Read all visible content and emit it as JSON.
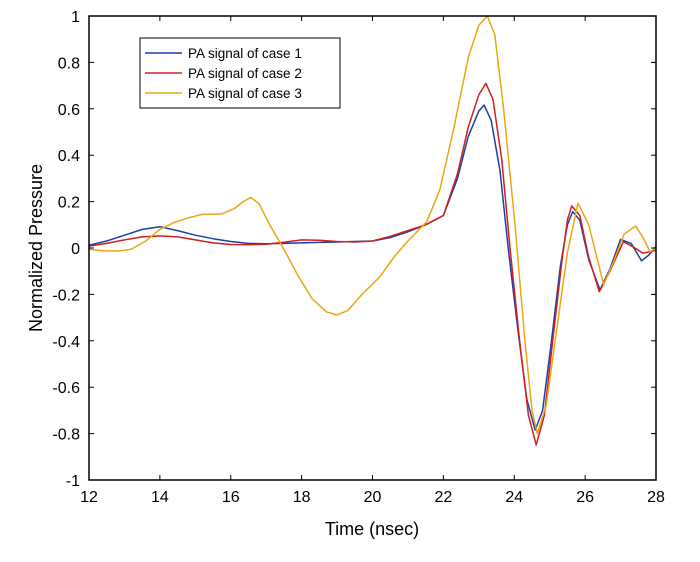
{
  "chart_data": {
    "type": "line",
    "title": "",
    "xlabel": "Time (nsec)",
    "ylabel": "Normalized Pressure",
    "xlim": [
      12,
      28
    ],
    "ylim": [
      -1,
      1
    ],
    "xticks": [
      12,
      14,
      16,
      18,
      20,
      22,
      24,
      26,
      28
    ],
    "yticks": [
      -1,
      -0.8,
      -0.6,
      -0.4,
      -0.2,
      0,
      0.2,
      0.4,
      0.6,
      0.8,
      1
    ],
    "xtick_labels": [
      "12",
      "14",
      "16",
      "18",
      "20",
      "22",
      "24",
      "26",
      "28"
    ],
    "ytick_labels": [
      "-1",
      "-0.8",
      "-0.6",
      "-0.4",
      "-0.2",
      "0",
      "0.2",
      "0.4",
      "0.6",
      "0.8",
      "1"
    ],
    "grid": false,
    "legend_position": "top-left",
    "series": [
      {
        "name": "PA signal of case 1",
        "color": "#1f3fa8",
        "x": [
          12.0,
          12.5,
          13.0,
          13.5,
          14.0,
          14.5,
          15.0,
          15.5,
          16.0,
          16.5,
          17.0,
          17.5,
          18.0,
          18.5,
          19.0,
          19.5,
          20.0,
          20.5,
          21.0,
          21.5,
          22.0,
          22.4,
          22.7,
          23.0,
          23.15,
          23.35,
          23.6,
          23.83,
          24.1,
          24.35,
          24.59,
          24.8,
          25.05,
          25.3,
          25.5,
          25.65,
          25.85,
          26.1,
          26.42,
          26.7,
          27.0,
          27.3,
          27.59,
          27.8,
          28.0
        ],
        "y": [
          0.012,
          0.03,
          0.055,
          0.08,
          0.092,
          0.075,
          0.055,
          0.04,
          0.028,
          0.02,
          0.018,
          0.02,
          0.022,
          0.024,
          0.026,
          0.028,
          0.03,
          0.045,
          0.07,
          0.1,
          0.14,
          0.3,
          0.48,
          0.59,
          0.616,
          0.55,
          0.33,
          0.0,
          -0.35,
          -0.65,
          -0.785,
          -0.7,
          -0.4,
          -0.08,
          0.1,
          0.157,
          0.12,
          -0.05,
          -0.181,
          -0.09,
          0.037,
          0.02,
          -0.055,
          -0.03,
          0.006
        ]
      },
      {
        "name": "PA signal of case 2",
        "color": "#d0201c",
        "x": [
          12.0,
          12.5,
          13.0,
          13.5,
          14.0,
          14.5,
          15.0,
          15.5,
          16.0,
          16.5,
          17.0,
          17.5,
          18.0,
          18.5,
          19.0,
          19.5,
          20.0,
          20.5,
          21.0,
          21.5,
          22.0,
          22.4,
          22.7,
          23.0,
          23.2,
          23.4,
          23.65,
          23.88,
          24.15,
          24.4,
          24.62,
          24.85,
          25.1,
          25.35,
          25.5,
          25.62,
          25.85,
          26.1,
          26.4,
          26.7,
          27.08,
          27.35,
          27.64,
          27.85,
          28.0
        ],
        "y": [
          0.008,
          0.02,
          0.035,
          0.048,
          0.052,
          0.048,
          0.035,
          0.022,
          0.015,
          0.014,
          0.016,
          0.025,
          0.035,
          0.033,
          0.028,
          0.026,
          0.03,
          0.05,
          0.075,
          0.1,
          0.14,
          0.32,
          0.52,
          0.66,
          0.71,
          0.64,
          0.38,
          0.0,
          -0.4,
          -0.72,
          -0.849,
          -0.72,
          -0.38,
          -0.05,
          0.12,
          0.181,
          0.14,
          -0.04,
          -0.188,
          -0.1,
          0.027,
          0.005,
          -0.023,
          -0.015,
          -0.01
        ]
      },
      {
        "name": "PA signal of case 3",
        "color": "#eaa713",
        "x": [
          12.0,
          12.4,
          12.85,
          13.2,
          13.6,
          14.0,
          14.4,
          14.8,
          15.2,
          15.75,
          16.1,
          16.35,
          16.57,
          16.8,
          17.1,
          17.48,
          17.9,
          18.3,
          18.7,
          18.99,
          19.3,
          19.7,
          20.21,
          20.6,
          21.0,
          21.53,
          21.9,
          22.3,
          22.7,
          23.0,
          23.24,
          23.45,
          23.7,
          24.02,
          24.3,
          24.5,
          24.65,
          24.9,
          25.2,
          25.5,
          25.8,
          26.1,
          26.52,
          26.8,
          27.1,
          27.43,
          27.65,
          27.83,
          28.0
        ],
        "y": [
          -0.005,
          -0.012,
          -0.013,
          -0.005,
          0.03,
          0.08,
          0.11,
          0.13,
          0.145,
          0.147,
          0.17,
          0.2,
          0.218,
          0.19,
          0.1,
          0.0,
          -0.12,
          -0.22,
          -0.275,
          -0.289,
          -0.27,
          -0.2,
          -0.124,
          -0.04,
          0.03,
          0.113,
          0.25,
          0.52,
          0.82,
          0.96,
          1.0,
          0.92,
          0.6,
          0.1,
          -0.4,
          -0.7,
          -0.8,
          -0.68,
          -0.35,
          -0.02,
          0.193,
          0.1,
          -0.157,
          -0.06,
          0.06,
          0.095,
          0.04,
          -0.016,
          0.0
        ]
      }
    ]
  }
}
